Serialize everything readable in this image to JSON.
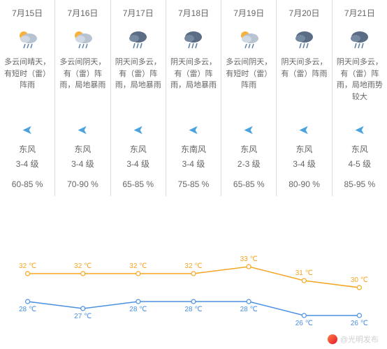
{
  "days": [
    {
      "date": "7月15日",
      "icon": "partly-rain",
      "desc": "多云间晴天，有短时（雷）阵雨",
      "wind_dir": "东风",
      "wind_level": "3-4 级",
      "humidity": "60-85 %"
    },
    {
      "date": "7月16日",
      "icon": "partly-rain",
      "desc": "多云间阴天，有（雷）阵雨，局地暴雨",
      "wind_dir": "东风",
      "wind_level": "3-4 级",
      "humidity": "70-90 %"
    },
    {
      "date": "7月17日",
      "icon": "cloud-rain",
      "desc": "阴天间多云，有（雷）阵雨，局地暴雨",
      "wind_dir": "东风",
      "wind_level": "3-4 级",
      "humidity": "65-85 %"
    },
    {
      "date": "7月18日",
      "icon": "cloud-rain",
      "desc": "阴天间多云，有（雷）阵雨，局地暴雨",
      "wind_dir": "东南风",
      "wind_level": "3-4 级",
      "humidity": "75-85 %"
    },
    {
      "date": "7月19日",
      "icon": "partly-rain",
      "desc": "多云间阴天，有短时（雷）阵雨",
      "wind_dir": "东风",
      "wind_level": "2-3 级",
      "humidity": "65-85 %"
    },
    {
      "date": "7月20日",
      "icon": "cloud-rain",
      "desc": "阴天间多云，有（雷）阵雨",
      "wind_dir": "东风",
      "wind_level": "3-4 级",
      "humidity": "80-90 %"
    },
    {
      "date": "7月21日",
      "icon": "cloud-rain",
      "desc": "阴天间多云，有（雷）阵雨，局地雨势较大",
      "wind_dir": "东风",
      "wind_level": "4-5 级",
      "humidity": "85-95 %"
    }
  ],
  "chart": {
    "highs": [
      32,
      32,
      32,
      32,
      33,
      31,
      30
    ],
    "lows": [
      28,
      27,
      28,
      28,
      28,
      26,
      26
    ],
    "high_color": "#f5a623",
    "low_color": "#4a90e2",
    "dot_fill": "#ffffff",
    "unit": "℃",
    "y_min": 24,
    "y_max": 34,
    "line_width": 1.5,
    "dot_radius": 3
  },
  "watermark": {
    "text": "@光明发布"
  }
}
